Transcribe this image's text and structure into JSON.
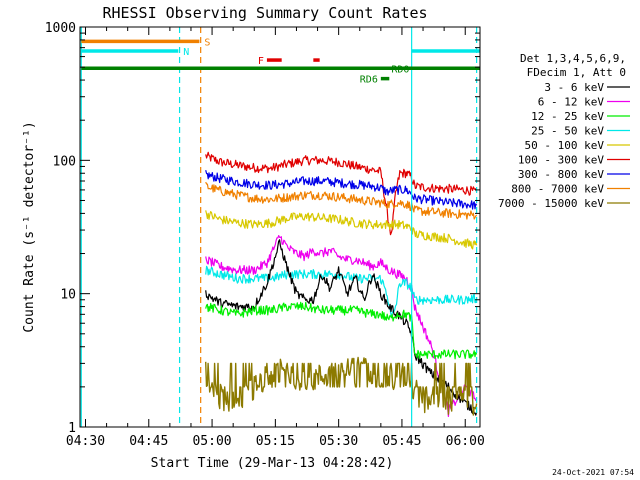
{
  "chart_data": {
    "type": "line",
    "title": "RHESSI Observing Summary Count Rates",
    "xlabel": "Start Time (29-Mar-13 04:28:42)",
    "ylabel": "Count Rate (s⁻¹ detector⁻¹)",
    "y_scale": "log",
    "ylim": [
      1,
      1000
    ],
    "xlim_minutes": [
      28.7,
      123.5
    ],
    "x_ticks": [
      {
        "minute": 30,
        "label": "04:30"
      },
      {
        "minute": 45,
        "label": "04:45"
      },
      {
        "minute": 60,
        "label": "05:00"
      },
      {
        "minute": 75,
        "label": "05:15"
      },
      {
        "minute": 90,
        "label": "05:30"
      },
      {
        "minute": 105,
        "label": "05:45"
      },
      {
        "minute": 120,
        "label": "06:00"
      }
    ],
    "y_ticks": [
      {
        "value": 1,
        "label": "1"
      },
      {
        "value": 10,
        "label": "10"
      },
      {
        "value": 100,
        "label": "100"
      },
      {
        "value": 1000,
        "label": "1000"
      }
    ],
    "legend": {
      "placement": "right",
      "header1": "Det 1,3,4,5,6,9,",
      "header2": "FDecim 1, Att 0",
      "entries": [
        {
          "label": "3 - 6 keV",
          "color": "#000000"
        },
        {
          "label": "6 - 12 keV",
          "color": "#ee00ee"
        },
        {
          "label": "12 - 25 keV",
          "color": "#00ee00"
        },
        {
          "label": "25 - 50 keV",
          "color": "#00e8e8"
        },
        {
          "label": "50 - 100 keV",
          "color": "#d8c800"
        },
        {
          "label": "100 - 300 keV",
          "color": "#e00000"
        },
        {
          "label": "300 - 800 keV",
          "color": "#0000e8"
        },
        {
          "label": "800 - 7000 keV",
          "color": "#f08000"
        },
        {
          "label": "7000 - 15000 keV",
          "color": "#8c7a00"
        }
      ]
    },
    "flags": [
      {
        "label": "S",
        "color": "#f08000",
        "value": 780,
        "x": [
          29,
          57
        ]
      },
      {
        "label": "N",
        "color": "#00e8e8",
        "value": 660,
        "x": [
          29,
          52
        ]
      },
      {
        "label": "N",
        "color": "#00e8e8",
        "value": 660,
        "x": [
          107.3,
          123.5
        ]
      },
      {
        "label": "F",
        "color": "#e00000",
        "value": 565,
        "x": [
          [
            73,
            76.5
          ],
          [
            84,
            85.5
          ]
        ]
      },
      {
        "label": "RD0",
        "color": "#008000",
        "value": 490,
        "x": [
          29,
          123.5
        ]
      },
      {
        "label": "RD6",
        "color": "#008000",
        "value": 410,
        "x": [
          100,
          102
        ]
      }
    ],
    "vlines": [
      {
        "minute": 29.0,
        "color": "#00e8e8",
        "style": "solid"
      },
      {
        "minute": 52.3,
        "color": "#00e8e8",
        "style": "dashed"
      },
      {
        "minute": 57.3,
        "color": "#f08000",
        "style": "dashed"
      },
      {
        "minute": 107.3,
        "color": "#00e8e8",
        "style": "solid"
      },
      {
        "minute": 122.7,
        "color": "#00e8e8",
        "style": "dashed"
      }
    ],
    "series": [
      {
        "color": "#e00000",
        "x": [
          58.5,
          62,
          66,
          70,
          74,
          78,
          82,
          86,
          90,
          94,
          98,
          100,
          101.5,
          102.5,
          103.5,
          104.5,
          106,
          107.3,
          108,
          112,
          116,
          120,
          122.7
        ],
        "values": [
          108,
          97,
          92,
          88,
          87,
          94,
          100,
          100,
          97,
          90,
          85,
          82,
          40,
          27,
          56,
          80,
          80,
          75,
          64,
          62,
          61,
          60,
          58
        ]
      },
      {
        "color": "#0000e8",
        "x": [
          58.5,
          62,
          66,
          70,
          74,
          78,
          82,
          86,
          90,
          94,
          98,
          100,
          101.5,
          102.5,
          103.5,
          104.5,
          106,
          107.3,
          108,
          112,
          116,
          120,
          122.7
        ],
        "values": [
          78,
          73,
          69,
          66,
          65,
          67,
          70,
          70,
          68,
          66,
          64,
          62,
          58,
          59,
          60,
          60,
          60,
          56,
          52,
          50,
          48,
          47,
          46
        ]
      },
      {
        "color": "#f08000",
        "x": [
          58.5,
          62,
          66,
          70,
          74,
          78,
          82,
          86,
          90,
          94,
          98,
          100,
          101.5,
          102.5,
          103.5,
          104.5,
          106,
          107.3,
          108,
          112,
          116,
          120,
          122.7
        ],
        "values": [
          64,
          59,
          55,
          52,
          51,
          53,
          55,
          55,
          53,
          51,
          49,
          48,
          47,
          47,
          48,
          48,
          47,
          45,
          42,
          41,
          40,
          39,
          39
        ]
      },
      {
        "color": "#d8c800",
        "x": [
          58.5,
          62,
          66,
          70,
          74,
          78,
          82,
          86,
          90,
          94,
          98,
          100,
          101.5,
          102.5,
          103.5,
          104.5,
          106,
          107.3,
          108,
          112,
          116,
          120,
          122.7
        ],
        "values": [
          40,
          36,
          34,
          33,
          34,
          37,
          38,
          37,
          36,
          34,
          33,
          33,
          33,
          33,
          33,
          33,
          32,
          31,
          28,
          27,
          26,
          24,
          23
        ]
      },
      {
        "color": "#ee00ee",
        "x": [
          58.5,
          62,
          66,
          70,
          73,
          76,
          78,
          80,
          82,
          84,
          86,
          88,
          90,
          92,
          94,
          96,
          98,
          100,
          102,
          104,
          106,
          107.3,
          108,
          112,
          116,
          120,
          122.7
        ],
        "values": [
          18,
          16,
          15,
          15,
          17,
          27,
          22,
          20,
          19,
          21,
          20,
          21,
          19,
          18,
          18,
          17,
          16,
          17,
          15,
          14,
          13,
          11,
          8,
          4,
          1.3,
          2,
          1.6
        ]
      },
      {
        "color": "#00e8e8",
        "x": [
          58.5,
          62,
          66,
          70,
          74,
          78,
          82,
          86,
          90,
          94,
          98,
          100,
          101.5,
          102.5,
          103.5,
          104.5,
          106,
          107.3,
          108,
          112,
          116,
          120,
          122.7
        ],
        "values": [
          15,
          14,
          13,
          13,
          13,
          14,
          14,
          14,
          14,
          13,
          13,
          13,
          10,
          6.5,
          8,
          12,
          12,
          11,
          9,
          9,
          9,
          9,
          9.2
        ]
      },
      {
        "color": "#000000",
        "x": [
          58.5,
          62,
          66,
          70,
          73,
          76,
          78,
          80,
          82,
          84,
          86,
          88,
          90,
          92,
          94,
          96,
          98,
          100,
          102,
          104,
          106,
          107.3,
          108,
          112,
          116,
          120,
          122.7
        ],
        "values": [
          10,
          8.5,
          8,
          8,
          12,
          24,
          15,
          10,
          9,
          9,
          14,
          11,
          15,
          10,
          13,
          9,
          14,
          10,
          8,
          7,
          6,
          5,
          3.5,
          2.5,
          2,
          1.5,
          1.3
        ]
      },
      {
        "color": "#00ee00",
        "x": [
          58.5,
          62,
          66,
          70,
          74,
          78,
          82,
          86,
          90,
          94,
          98,
          100,
          101.5,
          102.5,
          103.5,
          104.5,
          106,
          107.3,
          108,
          112,
          116,
          120,
          122.7
        ],
        "values": [
          8,
          7.5,
          7,
          7.5,
          7.5,
          8,
          8,
          7.5,
          7.5,
          7.5,
          7,
          7,
          6.5,
          6.5,
          7,
          7,
          7,
          6.5,
          3.5,
          3.5,
          3.5,
          3.5,
          3.5
        ]
      },
      {
        "color": "#8c7a00",
        "x": [
          58.5,
          60,
          64,
          68,
          72,
          76,
          80,
          84,
          88,
          92,
          96,
          100,
          104,
          106,
          107.3,
          110,
          114,
          118,
          122.7
        ],
        "values": [
          2.5,
          1.8,
          1.6,
          1.7,
          2.2,
          2.6,
          2.4,
          2.3,
          2.5,
          2.6,
          2.8,
          2.5,
          2.2,
          2.4,
          2,
          1.6,
          1.5,
          1.6,
          1.5
        ]
      }
    ]
  },
  "footer": {
    "timestamp": "24-Oct-2021 07:54"
  }
}
